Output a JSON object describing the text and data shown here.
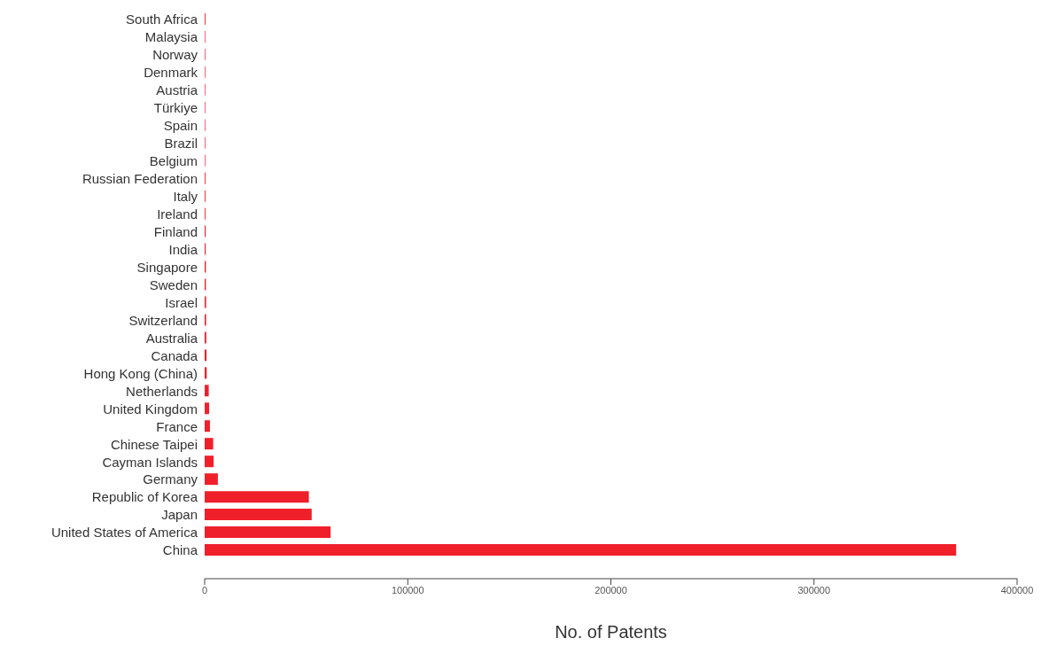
{
  "chart_data": {
    "type": "bar",
    "orientation": "horizontal",
    "xlabel": "No. of Patents",
    "categories": [
      "South Africa",
      "Malaysia",
      "Norway",
      "Denmark",
      "Austria",
      "Türkiye",
      "Spain",
      "Brazil",
      "Belgium",
      "Russian Federation",
      "Italy",
      "Ireland",
      "Finland",
      "India",
      "Singapore",
      "Sweden",
      "Israel",
      "Switzerland",
      "Australia",
      "Canada",
      "Hong Kong (China)",
      "Netherlands",
      "United Kingdom",
      "France",
      "Chinese Taipei",
      "Cayman Islands",
      "Germany",
      "Republic of Korea",
      "Japan",
      "United States of America",
      "China"
    ],
    "values": [
      400,
      300,
      300,
      300,
      300,
      300,
      300,
      300,
      300,
      400,
      400,
      400,
      500,
      500,
      600,
      600,
      700,
      700,
      800,
      900,
      1000,
      2000,
      2200,
      2600,
      4200,
      4400,
      6500,
      51300,
      52700,
      62000,
      370000
    ],
    "color": "#f0202a",
    "xlim": [
      0,
      400000
    ],
    "xticks": [
      0,
      100000,
      200000,
      300000,
      400000
    ]
  }
}
